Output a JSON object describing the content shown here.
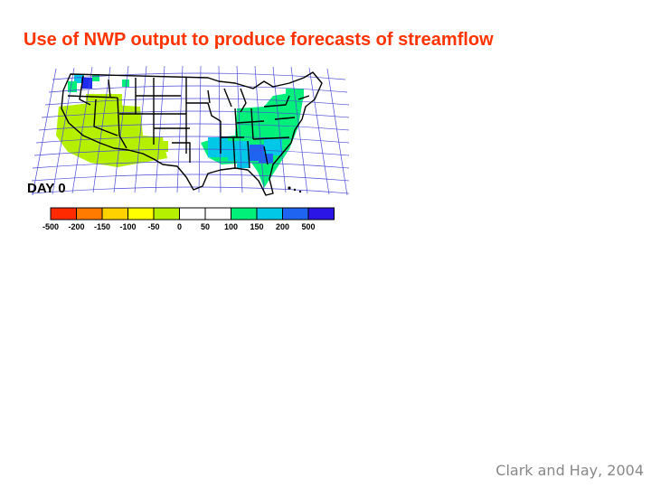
{
  "slide": {
    "title": "Use of NWP output to produce forecasts of streamflow",
    "credit": "Clark and Hay, 2004"
  },
  "map": {
    "day_label": "DAY 0",
    "legend": {
      "colors": [
        "#ff2a00",
        "#ff7b00",
        "#ffd200",
        "#ffff00",
        "#b4f000",
        "#ffffff",
        "#ffffff",
        "#00f07a",
        "#00c8e6",
        "#1e64f0",
        "#2a14e6"
      ],
      "tick_labels": [
        "-500",
        "-200",
        "-150",
        "-100",
        "-50",
        "0",
        "50",
        "100",
        "150",
        "200",
        "500"
      ]
    }
  }
}
